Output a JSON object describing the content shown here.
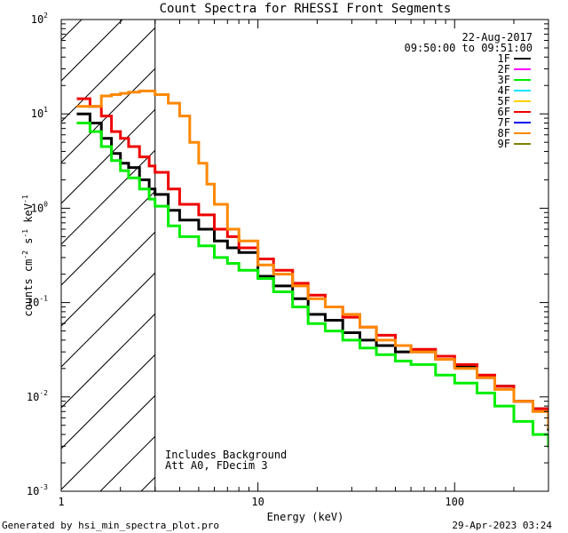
{
  "chart_data": {
    "type": "line",
    "title": "Count Spectra for RHESSI Front Segments",
    "xlabel": "Energy (keV)",
    "ylabel": "counts cm^-2 s^-1 keV^-1",
    "xscale": "log",
    "yscale": "log",
    "xlim": [
      1.0,
      300
    ],
    "ylim": [
      0.001,
      100
    ],
    "x_ticks": [
      {
        "value": 1,
        "label": "1"
      },
      {
        "value": 10,
        "label": "10"
      },
      {
        "value": 100,
        "label": "100"
      }
    ],
    "y_ticks": [
      {
        "value": 0.001,
        "label": "10",
        "exp": "-3"
      },
      {
        "value": 0.01,
        "label": "10",
        "exp": "-2"
      },
      {
        "value": 0.1,
        "label": "10",
        "exp": "-1"
      },
      {
        "value": 1,
        "label": "10",
        "exp": "0"
      },
      {
        "value": 10,
        "label": "10",
        "exp": "1"
      },
      {
        "value": 100,
        "label": "10",
        "exp": "2"
      }
    ],
    "date": "22-Aug-2017",
    "time_range": "09:50:00 to 09:51:00",
    "shaded_region_below_keV": 3,
    "annotations": [
      "Includes Background",
      "Att A0, FDecim 3"
    ],
    "legend": [
      {
        "name": "1F",
        "color": "#000000"
      },
      {
        "name": "2F",
        "color": "#ff00ff"
      },
      {
        "name": "3F",
        "color": "#00ee00"
      },
      {
        "name": "4F",
        "color": "#00e5ff"
      },
      {
        "name": "5F",
        "color": "#ffd000"
      },
      {
        "name": "6F",
        "color": "#ee0000"
      },
      {
        "name": "7F",
        "color": "#0000ee"
      },
      {
        "name": "8F",
        "color": "#ff8800"
      },
      {
        "name": "9F",
        "color": "#808000"
      }
    ],
    "series": [
      {
        "name": "1F",
        "color": "#000000",
        "x": [
          1.2,
          1.4,
          1.6,
          1.8,
          2.0,
          2.2,
          2.5,
          2.8,
          3.0,
          3.5,
          4.0,
          5.0,
          6.0,
          7.0,
          8.0,
          10,
          12,
          15,
          18,
          22,
          27,
          33,
          40,
          50,
          60,
          80,
          100,
          130,
          160,
          200,
          250,
          300
        ],
        "y": [
          10,
          8,
          5.5,
          3.8,
          3.0,
          2.7,
          2.0,
          1.6,
          1.4,
          0.95,
          0.75,
          0.6,
          0.45,
          0.38,
          0.34,
          0.19,
          0.15,
          0.11,
          0.075,
          0.065,
          0.048,
          0.04,
          0.035,
          0.03,
          0.03,
          0.025,
          0.021,
          0.016,
          0.013,
          0.009,
          0.0075,
          0.0045
        ]
      },
      {
        "name": "3F",
        "color": "#00ee00",
        "x": [
          1.2,
          1.4,
          1.6,
          1.8,
          2.0,
          2.2,
          2.5,
          2.8,
          3.0,
          3.5,
          4.0,
          5.0,
          6.0,
          7.0,
          8.0,
          10,
          12,
          15,
          18,
          22,
          27,
          33,
          40,
          50,
          60,
          80,
          100,
          130,
          160,
          200,
          250,
          300
        ],
        "y": [
          8,
          6.5,
          4.5,
          3.2,
          2.5,
          2.1,
          1.6,
          1.25,
          1.05,
          0.65,
          0.5,
          0.4,
          0.3,
          0.26,
          0.22,
          0.18,
          0.13,
          0.09,
          0.06,
          0.05,
          0.04,
          0.033,
          0.028,
          0.024,
          0.022,
          0.017,
          0.014,
          0.011,
          0.008,
          0.0055,
          0.004,
          0.003
        ]
      },
      {
        "name": "6F",
        "color": "#ee0000",
        "x": [
          1.2,
          1.4,
          1.6,
          1.8,
          2.0,
          2.2,
          2.5,
          2.8,
          3.0,
          3.5,
          4.0,
          5.0,
          6.0,
          7.0,
          8.0,
          10,
          12,
          15,
          18,
          22,
          27,
          33,
          40,
          50,
          60,
          80,
          100,
          130,
          160,
          200,
          250,
          300
        ],
        "y": [
          14.5,
          12,
          9.5,
          6.5,
          5.5,
          4.5,
          3.5,
          2.8,
          2.4,
          1.6,
          1.1,
          0.85,
          0.6,
          0.5,
          0.38,
          0.29,
          0.22,
          0.16,
          0.12,
          0.09,
          0.07,
          0.055,
          0.045,
          0.035,
          0.032,
          0.027,
          0.022,
          0.017,
          0.013,
          0.009,
          0.0075,
          0.0055
        ]
      },
      {
        "name": "8F",
        "color": "#ff8800",
        "x": [
          1.2,
          1.4,
          1.6,
          1.8,
          2.0,
          2.2,
          2.5,
          2.8,
          3.0,
          3.5,
          4.0,
          4.5,
          5.0,
          5.5,
          6.0,
          7.0,
          8.0,
          10,
          12,
          15,
          18,
          22,
          27,
          33,
          40,
          50,
          60,
          80,
          100,
          130,
          160,
          200,
          250,
          300
        ],
        "y": [
          12,
          12,
          15.5,
          16,
          16.5,
          17,
          17.5,
          17.5,
          16,
          13,
          9.5,
          5.0,
          3.0,
          1.8,
          1.1,
          0.6,
          0.45,
          0.25,
          0.2,
          0.15,
          0.11,
          0.09,
          0.075,
          0.055,
          0.04,
          0.035,
          0.03,
          0.025,
          0.02,
          0.016,
          0.012,
          0.009,
          0.007,
          0.0048
        ]
      }
    ]
  },
  "footer": {
    "left": "Generated by hsi_min_spectra_plot.pro",
    "right": "29-Apr-2023 03:24"
  }
}
